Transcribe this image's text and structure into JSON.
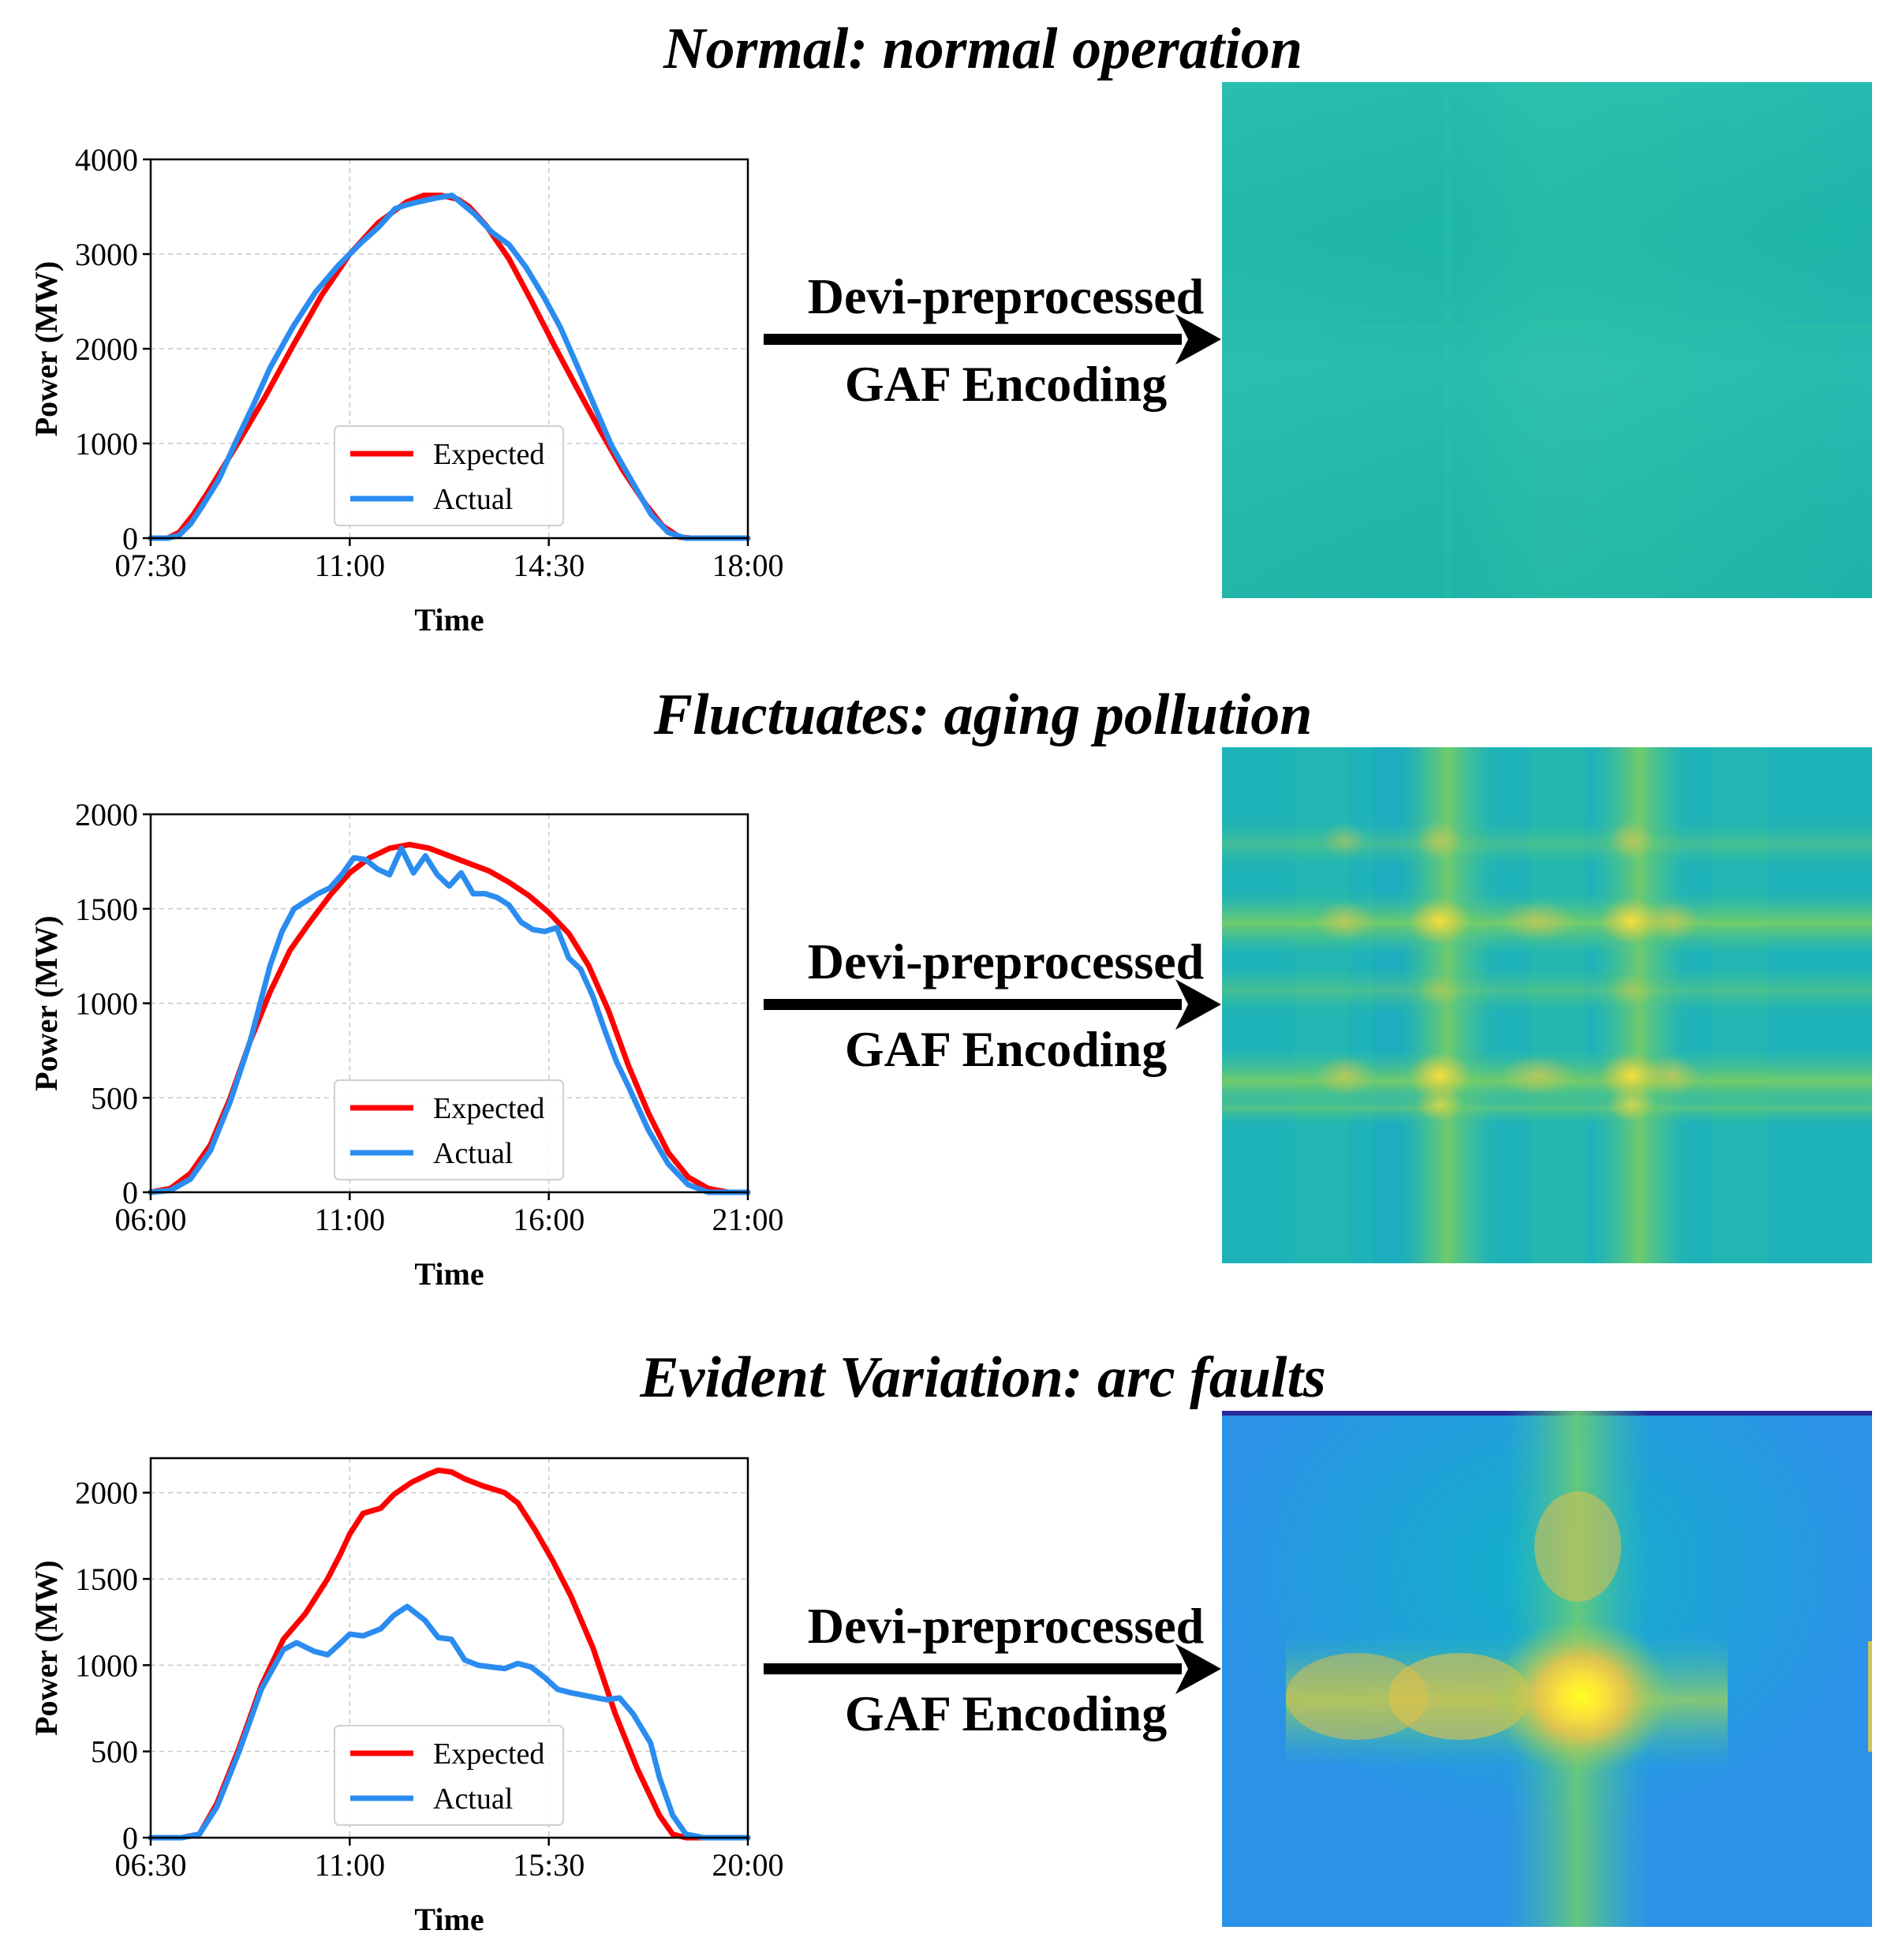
{
  "figure": {
    "arrow_label_line1": "Devi-preprocessed",
    "arrow_label_line2": "GAF Encoding"
  },
  "colors": {
    "expected": "#ff0000",
    "actual": "#2b8cf0",
    "text": "#000000",
    "grid": "#c8c8c8"
  },
  "chart_data": [
    {
      "type": "line",
      "title": "Normal: normal operation",
      "xlabel": "Time",
      "ylabel": "Power (MW)",
      "x_range": [
        7.5,
        18.0
      ],
      "xticks": [
        7.5,
        11.0,
        14.5,
        18.0
      ],
      "xtick_labels": [
        "07:30",
        "11:00",
        "14:30",
        "18:00"
      ],
      "ylim": [
        0,
        4000
      ],
      "yticks": [
        0,
        1000,
        2000,
        3000,
        4000
      ],
      "ytick_labels": [
        "0",
        "1000",
        "2000",
        "3000",
        "4000"
      ],
      "grid": true,
      "legend_position": "lower-center",
      "series": [
        {
          "name": "Expected",
          "x": [
            7.5,
            7.8,
            8.0,
            8.25,
            8.5,
            9.0,
            9.5,
            10.0,
            10.5,
            11.0,
            11.5,
            12.0,
            12.3,
            12.6,
            12.9,
            13.1,
            13.4,
            13.8,
            14.2,
            14.6,
            15.0,
            15.4,
            15.8,
            16.2,
            16.5,
            16.8,
            17.0,
            17.3,
            17.6,
            18.0
          ],
          "values": [
            0,
            0,
            60,
            250,
            480,
            970,
            1480,
            2030,
            2560,
            3000,
            3330,
            3550,
            3620,
            3620,
            3580,
            3500,
            3300,
            2950,
            2500,
            2030,
            1580,
            1140,
            720,
            360,
            130,
            10,
            0,
            0,
            0,
            0
          ]
        },
        {
          "name": "Actual",
          "x": [
            7.5,
            7.8,
            8.0,
            8.2,
            8.4,
            8.7,
            9.0,
            9.3,
            9.6,
            10.0,
            10.4,
            10.8,
            11.2,
            11.5,
            11.8,
            12.0,
            12.2,
            12.5,
            12.8,
            13.0,
            13.2,
            13.5,
            13.8,
            14.1,
            14.4,
            14.7,
            15.0,
            15.3,
            15.6,
            16.0,
            16.3,
            16.6,
            16.9,
            17.1,
            17.4,
            17.7,
            18.0
          ],
          "values": [
            0,
            0,
            30,
            150,
            330,
            620,
            1020,
            1400,
            1800,
            2230,
            2600,
            2880,
            3120,
            3280,
            3480,
            3520,
            3550,
            3590,
            3620,
            3520,
            3420,
            3230,
            3100,
            2860,
            2560,
            2230,
            1820,
            1400,
            980,
            560,
            250,
            60,
            0,
            0,
            0,
            0,
            0
          ]
        }
      ]
    },
    {
      "type": "line",
      "title": "Fluctuates: aging pollution",
      "xlabel": "Time",
      "ylabel": "Power (MW)",
      "x_range": [
        6.0,
        21.0
      ],
      "xticks": [
        6.0,
        11.0,
        16.0,
        21.0
      ],
      "xtick_labels": [
        "06:00",
        "11:00",
        "16:00",
        "21:00"
      ],
      "ylim": [
        0,
        2000
      ],
      "yticks": [
        0,
        500,
        1000,
        1500,
        2000
      ],
      "ytick_labels": [
        "0",
        "500",
        "1000",
        "1500",
        "2000"
      ],
      "grid": true,
      "legend_position": "lower-center",
      "series": [
        {
          "name": "Expected",
          "x": [
            6.0,
            6.5,
            7.0,
            7.5,
            8.0,
            8.5,
            9.0,
            9.5,
            10.0,
            10.5,
            11.0,
            11.5,
            12.0,
            12.5,
            13.0,
            13.5,
            14.0,
            14.5,
            15.0,
            15.5,
            16.0,
            16.5,
            17.0,
            17.5,
            18.0,
            18.5,
            19.0,
            19.5,
            20.0,
            20.5,
            21.0
          ],
          "values": [
            0,
            20,
            100,
            250,
            500,
            800,
            1060,
            1280,
            1430,
            1570,
            1690,
            1770,
            1820,
            1840,
            1820,
            1780,
            1740,
            1700,
            1640,
            1570,
            1480,
            1370,
            1200,
            960,
            670,
            420,
            210,
            80,
            20,
            0,
            0
          ]
        },
        {
          "name": "Actual",
          "x": [
            6.0,
            6.5,
            7.0,
            7.5,
            8.0,
            8.5,
            9.0,
            9.3,
            9.6,
            9.9,
            10.2,
            10.5,
            10.8,
            11.1,
            11.4,
            11.7,
            12.0,
            12.3,
            12.6,
            12.9,
            13.2,
            13.5,
            13.8,
            14.1,
            14.4,
            14.7,
            15.0,
            15.3,
            15.6,
            15.9,
            16.2,
            16.5,
            16.8,
            17.1,
            17.4,
            17.7,
            18.0,
            18.5,
            19.0,
            19.5,
            20.0,
            20.5,
            21.0
          ],
          "values": [
            0,
            10,
            70,
            220,
            480,
            800,
            1200,
            1380,
            1500,
            1540,
            1580,
            1610,
            1680,
            1770,
            1760,
            1710,
            1680,
            1820,
            1690,
            1780,
            1680,
            1620,
            1690,
            1580,
            1580,
            1560,
            1520,
            1430,
            1390,
            1380,
            1400,
            1240,
            1180,
            1040,
            860,
            690,
            560,
            330,
            150,
            40,
            0,
            0,
            0
          ]
        }
      ]
    },
    {
      "type": "line",
      "title": "Evident Variation: arc faults",
      "xlabel": "Time",
      "ylabel": "Power (MW)",
      "x_range": [
        6.5,
        20.0
      ],
      "xticks": [
        6.5,
        11.0,
        15.5,
        20.0
      ],
      "xtick_labels": [
        "06:30",
        "11:00",
        "15:30",
        "20:00"
      ],
      "ylim": [
        0,
        2200
      ],
      "yticks": [
        0,
        500,
        1000,
        1500,
        2000
      ],
      "ytick_labels": [
        "0",
        "500",
        "1000",
        "1500",
        "2000"
      ],
      "grid": true,
      "legend_position": "lower-center",
      "series": [
        {
          "name": "Expected",
          "x": [
            6.5,
            7.2,
            7.6,
            8.0,
            8.5,
            9.0,
            9.5,
            10.0,
            10.5,
            10.8,
            11.0,
            11.3,
            11.7,
            12.0,
            12.4,
            12.8,
            13.0,
            13.3,
            13.6,
            14.0,
            14.5,
            14.8,
            15.2,
            15.6,
            16.0,
            16.5,
            17.0,
            17.5,
            18.0,
            18.3,
            18.6,
            19.0,
            20.0
          ],
          "values": [
            0,
            0,
            20,
            200,
            520,
            880,
            1150,
            1300,
            1500,
            1650,
            1760,
            1880,
            1910,
            1990,
            2060,
            2110,
            2130,
            2120,
            2080,
            2040,
            2000,
            1940,
            1780,
            1600,
            1400,
            1100,
            720,
            400,
            130,
            20,
            0,
            0,
            0
          ]
        },
        {
          "name": "Actual",
          "x": [
            6.5,
            7.2,
            7.6,
            8.0,
            8.5,
            9.0,
            9.5,
            9.8,
            10.2,
            10.5,
            10.8,
            11.0,
            11.3,
            11.7,
            12.0,
            12.3,
            12.7,
            13.0,
            13.3,
            13.6,
            13.9,
            14.2,
            14.5,
            14.8,
            15.1,
            15.4,
            15.7,
            16.0,
            16.4,
            16.8,
            17.1,
            17.4,
            17.8,
            18.0,
            18.3,
            18.6,
            19.0,
            20.0
          ],
          "values": [
            0,
            0,
            20,
            180,
            500,
            860,
            1090,
            1130,
            1080,
            1060,
            1130,
            1180,
            1170,
            1210,
            1290,
            1340,
            1260,
            1160,
            1150,
            1030,
            1000,
            990,
            980,
            1010,
            990,
            930,
            860,
            840,
            820,
            800,
            810,
            720,
            550,
            350,
            130,
            20,
            0,
            0
          ]
        }
      ]
    }
  ],
  "gaf_images": [
    {
      "name": "normal",
      "base_color": "#20bba9",
      "highlight_color": "#f9e53a"
    },
    {
      "name": "fluctuates",
      "base_color": "#1fb5b8",
      "highlight_color": "#fbd83a"
    },
    {
      "name": "evident-variation",
      "base_color": "#2c8fe6",
      "highlight_color": "#fbf52a"
    }
  ]
}
